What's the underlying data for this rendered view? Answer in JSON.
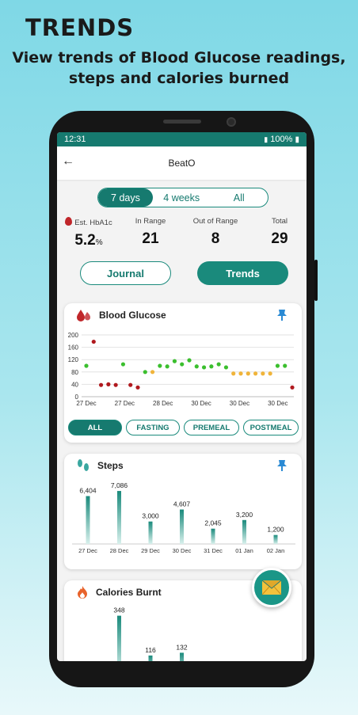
{
  "promo": {
    "title": "TRENDS",
    "subtitle_line1": "View trends of Blood Glucose readings,",
    "subtitle_line2": "steps and calories burned"
  },
  "status_bar": {
    "time": "12:31",
    "battery": "100%"
  },
  "app_bar": {
    "title": "BeatO"
  },
  "range_tabs": [
    "7 days",
    "4 weeks",
    "All"
  ],
  "stats": {
    "hba1c_label": "Est. HbA1c",
    "hba1c_value": "5.2",
    "hba1c_unit": "%",
    "in_range_label": "In Range",
    "in_range_value": "21",
    "out_of_range_label": "Out of Range",
    "out_of_range_value": "8",
    "total_label": "Total",
    "total_value": "29"
  },
  "view_tabs": {
    "journal": "Journal",
    "trends": "Trends"
  },
  "blood_glucose": {
    "title": "Blood Glucose",
    "filters": [
      "ALL",
      "FASTING",
      "PREMEAL",
      "POSTMEAL"
    ]
  },
  "steps_card": {
    "title": "Steps"
  },
  "calories_card": {
    "title": "Calories Burnt"
  },
  "colors": {
    "accent": "#167a6f",
    "high": "#b0191e",
    "normal": "#3bbf2e",
    "low_borderline": "#f0b43a"
  },
  "chart_data": [
    {
      "type": "scatter",
      "title": "Blood Glucose",
      "ylim": [
        0,
        200
      ],
      "yticks": [
        0,
        40,
        80,
        120,
        160,
        200
      ],
      "xticks": [
        "27 Dec",
        "27 Dec",
        "28 Dec",
        "30 Dec",
        "30 Dec",
        "30 Dec"
      ],
      "points": [
        {
          "i": 0,
          "y": 100,
          "c": "normal"
        },
        {
          "i": 1,
          "y": 178,
          "c": "high"
        },
        {
          "i": 2,
          "y": 38,
          "c": "high"
        },
        {
          "i": 3,
          "y": 40,
          "c": "high"
        },
        {
          "i": 4,
          "y": 38,
          "c": "high"
        },
        {
          "i": 5,
          "y": 105,
          "c": "normal"
        },
        {
          "i": 6,
          "y": 38,
          "c": "high"
        },
        {
          "i": 7,
          "y": 30,
          "c": "high"
        },
        {
          "i": 8,
          "y": 80,
          "c": "normal"
        },
        {
          "i": 9,
          "y": 80,
          "c": "low_borderline"
        },
        {
          "i": 10,
          "y": 100,
          "c": "normal"
        },
        {
          "i": 11,
          "y": 98,
          "c": "normal"
        },
        {
          "i": 12,
          "y": 115,
          "c": "normal"
        },
        {
          "i": 13,
          "y": 105,
          "c": "normal"
        },
        {
          "i": 14,
          "y": 118,
          "c": "normal"
        },
        {
          "i": 15,
          "y": 98,
          "c": "normal"
        },
        {
          "i": 16,
          "y": 95,
          "c": "normal"
        },
        {
          "i": 17,
          "y": 98,
          "c": "normal"
        },
        {
          "i": 18,
          "y": 105,
          "c": "normal"
        },
        {
          "i": 19,
          "y": 95,
          "c": "normal"
        },
        {
          "i": 20,
          "y": 75,
          "c": "low_borderline"
        },
        {
          "i": 21,
          "y": 75,
          "c": "low_borderline"
        },
        {
          "i": 22,
          "y": 75,
          "c": "low_borderline"
        },
        {
          "i": 23,
          "y": 75,
          "c": "low_borderline"
        },
        {
          "i": 24,
          "y": 75,
          "c": "low_borderline"
        },
        {
          "i": 25,
          "y": 75,
          "c": "low_borderline"
        },
        {
          "i": 26,
          "y": 100,
          "c": "normal"
        },
        {
          "i": 27,
          "y": 100,
          "c": "normal"
        },
        {
          "i": 28,
          "y": 30,
          "c": "high"
        }
      ]
    },
    {
      "type": "bar",
      "title": "Steps",
      "categories": [
        "27 Dec",
        "28 Dec",
        "29 Dec",
        "30 Dec",
        "31 Dec",
        "01 Jan",
        "02 Jan"
      ],
      "values": [
        6404,
        7086,
        3000,
        4607,
        2045,
        3200,
        1200
      ],
      "labels": [
        "6,404",
        "7,086",
        "3,000",
        "4,607",
        "2,045",
        "3,200",
        "1,200"
      ]
    },
    {
      "type": "bar",
      "title": "Calories Burnt",
      "values": [
        348,
        116,
        132
      ],
      "labels": [
        "348",
        "116",
        "132"
      ]
    }
  ]
}
